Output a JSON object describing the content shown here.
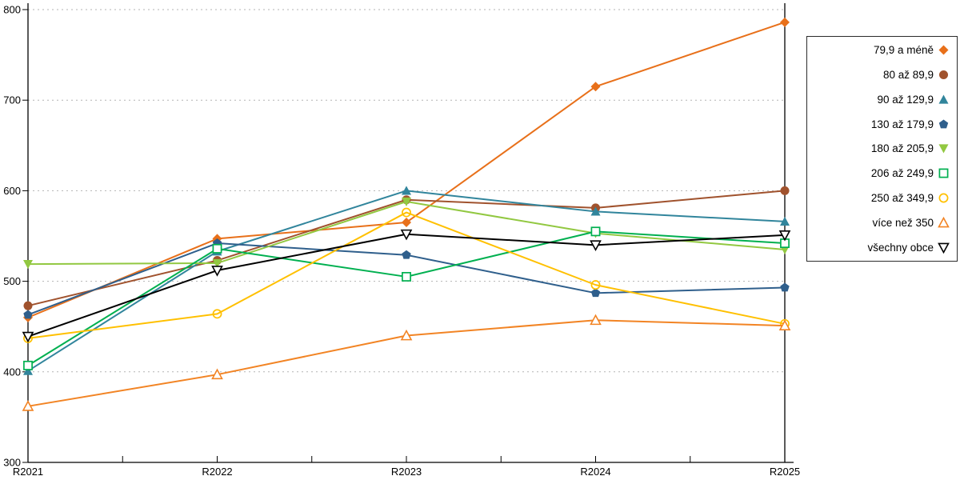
{
  "chart_data": {
    "type": "line",
    "title": "",
    "xlabel": "",
    "ylabel": "",
    "x": [
      "R2021",
      "R2022",
      "R2023",
      "R2024",
      "R2025"
    ],
    "ylim": [
      300,
      800
    ],
    "yticks": [
      300,
      400,
      500,
      600,
      700,
      800
    ],
    "grid": "horizontal dotted gridlines",
    "legend_position": "right, boxed, markers to the right of right-aligned labels",
    "colors": {
      "axis": "#000000",
      "gridline": "#b3b3b3",
      "background": "#ffffff"
    },
    "series": [
      {
        "name": "79,9 a méně",
        "marker": "diamond-filled",
        "color": "#E8701A",
        "values": [
          460,
          547,
          565,
          715,
          786
        ]
      },
      {
        "name": "80 až 89,9",
        "marker": "circle-filled",
        "color": "#A0522D",
        "values": [
          473,
          523,
          590,
          581,
          600
        ]
      },
      {
        "name": "90 až 129,9",
        "marker": "triangle-up-filled",
        "color": "#31859C",
        "values": [
          401,
          533,
          600,
          577,
          566
        ]
      },
      {
        "name": "130 až 179,9",
        "marker": "pentagon-filled",
        "color": "#2F5F8C",
        "values": [
          463,
          542,
          529,
          487,
          493
        ]
      },
      {
        "name": "180 až 205,9",
        "marker": "triangle-down-filled",
        "color": "#92C841",
        "values": [
          519,
          520,
          588,
          553,
          535
        ]
      },
      {
        "name": "206 až 249,9",
        "marker": "square-hollow",
        "color": "#00B050",
        "values": [
          407,
          536,
          505,
          555,
          542
        ]
      },
      {
        "name": "250 až 349,9",
        "marker": "circle-hollow",
        "color": "#FFC000",
        "values": [
          437,
          464,
          576,
          496,
          453
        ]
      },
      {
        "name": "více než 350",
        "marker": "triangle-up-hollow",
        "color": "#F28424",
        "values": [
          362,
          397,
          440,
          457,
          451
        ]
      },
      {
        "name": "všechny obce",
        "marker": "triangle-down-hollow",
        "color": "#000000",
        "values": [
          439,
          512,
          552,
          540,
          551
        ]
      }
    ]
  }
}
